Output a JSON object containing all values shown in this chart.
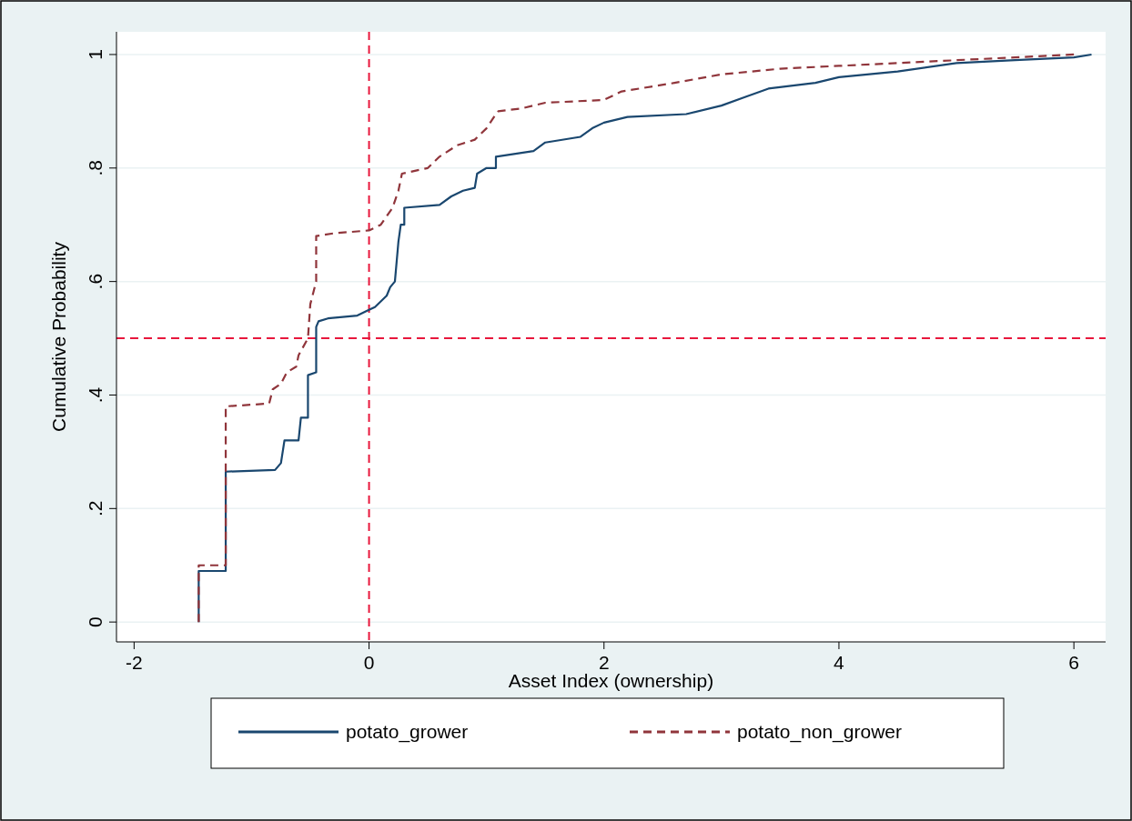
{
  "chart_data": {
    "type": "line",
    "xlabel": "Asset Index (ownership)",
    "ylabel": "Cumulative Probability",
    "xlim": [
      -2.15,
      6.27
    ],
    "xticks": [
      -2,
      0,
      2,
      4,
      6
    ],
    "ylim": [
      -0.035,
      1.04
    ],
    "yticks": [
      0,
      {
        "value": 0.2,
        "label": ".2"
      },
      {
        "value": 0.4,
        "label": ".4"
      },
      {
        "value": 0.6,
        "label": ".6"
      },
      {
        "value": 0.8,
        "label": ".8"
      },
      1
    ],
    "grid": "y",
    "legend": "bottom",
    "ref_lines": [
      {
        "axis": "x",
        "value": 0,
        "color": "#e8173c",
        "line_style": "dashed"
      },
      {
        "axis": "y",
        "value": 0.5,
        "color": "#e8173c",
        "line_style": "dashed"
      }
    ],
    "series": [
      {
        "name": "potato_grower",
        "color": "#1a476f",
        "line_style": "solid",
        "x": [
          -1.45,
          -1.45,
          -1.22,
          -1.22,
          -0.8,
          -0.75,
          -0.72,
          -0.6,
          -0.58,
          -0.52,
          -0.52,
          -0.45,
          -0.45,
          -0.43,
          -0.35,
          -0.1,
          0,
          0.05,
          0.1,
          0.15,
          0.18,
          0.22,
          0.25,
          0.27,
          0.3,
          0.3,
          0.6,
          0.7,
          0.8,
          0.9,
          0.92,
          1.0,
          1.08,
          1.08,
          1.4,
          1.5,
          1.8,
          1.9,
          2.0,
          2.2,
          2.7,
          3.0,
          3.2,
          3.4,
          3.8,
          4.0,
          4.5,
          5.0,
          5.5,
          6.0,
          6.15
        ],
        "values": [
          0,
          0.09,
          0.09,
          0.265,
          0.268,
          0.28,
          0.32,
          0.32,
          0.36,
          0.36,
          0.435,
          0.44,
          0.52,
          0.53,
          0.535,
          0.54,
          0.55,
          0.555,
          0.565,
          0.575,
          0.59,
          0.6,
          0.67,
          0.7,
          0.7,
          0.73,
          0.735,
          0.75,
          0.76,
          0.765,
          0.79,
          0.8,
          0.8,
          0.82,
          0.83,
          0.845,
          0.855,
          0.87,
          0.88,
          0.89,
          0.895,
          0.91,
          0.925,
          0.94,
          0.95,
          0.96,
          0.97,
          0.985,
          0.99,
          0.995,
          1.0
        ]
      },
      {
        "name": "potato_non_grower",
        "color": "#90353b",
        "line_style": "dashed",
        "x": [
          -1.45,
          -1.45,
          -1.22,
          -1.22,
          -0.85,
          -0.82,
          -0.75,
          -0.7,
          -0.62,
          -0.6,
          -0.52,
          -0.5,
          -0.45,
          -0.45,
          -0.3,
          0,
          0.1,
          0.2,
          0.25,
          0.28,
          0.5,
          0.6,
          0.75,
          0.9,
          1.0,
          1.08,
          1.1,
          1.3,
          1.5,
          2.0,
          2.15,
          2.6,
          3.0,
          3.5,
          4.0,
          4.5,
          5.0,
          5.5,
          6.0
        ],
        "values": [
          0,
          0.1,
          0.1,
          0.38,
          0.385,
          0.41,
          0.42,
          0.44,
          0.45,
          0.47,
          0.5,
          0.56,
          0.6,
          0.68,
          0.685,
          0.69,
          0.7,
          0.73,
          0.76,
          0.79,
          0.8,
          0.82,
          0.84,
          0.85,
          0.87,
          0.895,
          0.9,
          0.905,
          0.915,
          0.92,
          0.935,
          0.95,
          0.965,
          0.975,
          0.98,
          0.985,
          0.99,
          0.995,
          1.0
        ]
      }
    ]
  }
}
